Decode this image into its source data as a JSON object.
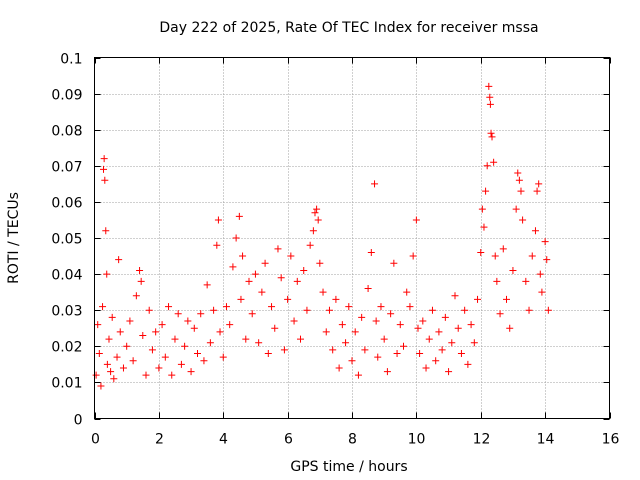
{
  "chart_data": {
    "type": "scatter",
    "title": "Day 222 of 2025, Rate Of TEC Index for receiver mssa",
    "xlabel": "GPS time / hours",
    "ylabel": "ROTI / TECUs",
    "xlim": [
      0,
      16
    ],
    "ylim": [
      0,
      0.1
    ],
    "xticks": [
      0,
      2,
      4,
      6,
      8,
      10,
      12,
      14,
      16
    ],
    "yticks": [
      0,
      0.01,
      0.02,
      0.03,
      0.04,
      0.05,
      0.06,
      0.07,
      0.08,
      0.09,
      0.1
    ],
    "xtick_labels": [
      "0",
      "2",
      "4",
      "6",
      "8",
      "10",
      "12",
      "14",
      "16"
    ],
    "ytick_labels": [
      "0",
      "0.01",
      "0.02",
      "0.03",
      "0.04",
      "0.05",
      "0.06",
      "0.07",
      "0.08",
      "0.09",
      "0.1"
    ],
    "grid": true,
    "marker": "+",
    "color": "#ff0000",
    "series": [
      {
        "name": "ROTI",
        "points": [
          [
            0.05,
            0.012
          ],
          [
            0.1,
            0.026
          ],
          [
            0.15,
            0.018
          ],
          [
            0.2,
            0.009
          ],
          [
            0.25,
            0.031
          ],
          [
            0.28,
            0.069
          ],
          [
            0.3,
            0.072
          ],
          [
            0.32,
            0.066
          ],
          [
            0.35,
            0.052
          ],
          [
            0.38,
            0.04
          ],
          [
            0.4,
            0.015
          ],
          [
            0.45,
            0.022
          ],
          [
            0.5,
            0.013
          ],
          [
            0.55,
            0.028
          ],
          [
            0.6,
            0.011
          ],
          [
            0.7,
            0.017
          ],
          [
            0.75,
            0.044
          ],
          [
            0.8,
            0.024
          ],
          [
            0.9,
            0.014
          ],
          [
            1.0,
            0.02
          ],
          [
            1.1,
            0.027
          ],
          [
            1.2,
            0.016
          ],
          [
            1.3,
            0.034
          ],
          [
            1.4,
            0.041
          ],
          [
            1.45,
            0.038
          ],
          [
            1.5,
            0.023
          ],
          [
            1.6,
            0.012
          ],
          [
            1.7,
            0.03
          ],
          [
            1.8,
            0.019
          ],
          [
            1.9,
            0.024
          ],
          [
            2.0,
            0.014
          ],
          [
            2.1,
            0.026
          ],
          [
            2.2,
            0.017
          ],
          [
            2.3,
            0.031
          ],
          [
            2.4,
            0.012
          ],
          [
            2.5,
            0.022
          ],
          [
            2.6,
            0.029
          ],
          [
            2.7,
            0.015
          ],
          [
            2.8,
            0.02
          ],
          [
            2.9,
            0.027
          ],
          [
            3.0,
            0.013
          ],
          [
            3.1,
            0.025
          ],
          [
            3.2,
            0.018
          ],
          [
            3.3,
            0.029
          ],
          [
            3.4,
            0.016
          ],
          [
            3.5,
            0.037
          ],
          [
            3.6,
            0.021
          ],
          [
            3.7,
            0.03
          ],
          [
            3.8,
            0.048
          ],
          [
            3.85,
            0.055
          ],
          [
            3.9,
            0.024
          ],
          [
            4.0,
            0.017
          ],
          [
            4.1,
            0.031
          ],
          [
            4.2,
            0.026
          ],
          [
            4.3,
            0.042
          ],
          [
            4.4,
            0.05
          ],
          [
            4.5,
            0.056
          ],
          [
            4.55,
            0.033
          ],
          [
            4.6,
            0.045
          ],
          [
            4.7,
            0.022
          ],
          [
            4.8,
            0.038
          ],
          [
            4.9,
            0.029
          ],
          [
            5.0,
            0.04
          ],
          [
            5.1,
            0.021
          ],
          [
            5.2,
            0.035
          ],
          [
            5.3,
            0.043
          ],
          [
            5.4,
            0.018
          ],
          [
            5.5,
            0.031
          ],
          [
            5.6,
            0.025
          ],
          [
            5.7,
            0.047
          ],
          [
            5.8,
            0.039
          ],
          [
            5.9,
            0.019
          ],
          [
            6.0,
            0.033
          ],
          [
            6.1,
            0.045
          ],
          [
            6.2,
            0.027
          ],
          [
            6.3,
            0.038
          ],
          [
            6.4,
            0.022
          ],
          [
            6.5,
            0.041
          ],
          [
            6.6,
            0.03
          ],
          [
            6.7,
            0.048
          ],
          [
            6.8,
            0.052
          ],
          [
            6.85,
            0.057
          ],
          [
            6.9,
            0.058
          ],
          [
            6.95,
            0.055
          ],
          [
            7.0,
            0.043
          ],
          [
            7.1,
            0.035
          ],
          [
            7.2,
            0.024
          ],
          [
            7.3,
            0.03
          ],
          [
            7.4,
            0.019
          ],
          [
            7.5,
            0.033
          ],
          [
            7.6,
            0.014
          ],
          [
            7.7,
            0.026
          ],
          [
            7.8,
            0.021
          ],
          [
            7.9,
            0.031
          ],
          [
            8.0,
            0.016
          ],
          [
            8.1,
            0.024
          ],
          [
            8.2,
            0.012
          ],
          [
            8.3,
            0.028
          ],
          [
            8.4,
            0.019
          ],
          [
            8.5,
            0.036
          ],
          [
            8.6,
            0.046
          ],
          [
            8.7,
            0.065
          ],
          [
            8.75,
            0.027
          ],
          [
            8.8,
            0.017
          ],
          [
            8.9,
            0.031
          ],
          [
            9.0,
            0.022
          ],
          [
            9.1,
            0.013
          ],
          [
            9.2,
            0.029
          ],
          [
            9.3,
            0.043
          ],
          [
            9.4,
            0.018
          ],
          [
            9.5,
            0.026
          ],
          [
            9.6,
            0.02
          ],
          [
            9.7,
            0.035
          ],
          [
            9.8,
            0.031
          ],
          [
            9.9,
            0.045
          ],
          [
            10.0,
            0.055
          ],
          [
            10.05,
            0.025
          ],
          [
            10.1,
            0.018
          ],
          [
            10.2,
            0.027
          ],
          [
            10.3,
            0.014
          ],
          [
            10.4,
            0.022
          ],
          [
            10.5,
            0.03
          ],
          [
            10.6,
            0.016
          ],
          [
            10.7,
            0.024
          ],
          [
            10.8,
            0.019
          ],
          [
            10.9,
            0.028
          ],
          [
            11.0,
            0.013
          ],
          [
            11.1,
            0.021
          ],
          [
            11.2,
            0.034
          ],
          [
            11.3,
            0.025
          ],
          [
            11.4,
            0.018
          ],
          [
            11.5,
            0.03
          ],
          [
            11.6,
            0.015
          ],
          [
            11.7,
            0.026
          ],
          [
            11.8,
            0.021
          ],
          [
            11.9,
            0.033
          ],
          [
            12.0,
            0.046
          ],
          [
            12.05,
            0.058
          ],
          [
            12.1,
            0.053
          ],
          [
            12.15,
            0.063
          ],
          [
            12.2,
            0.07
          ],
          [
            12.25,
            0.092
          ],
          [
            12.28,
            0.089
          ],
          [
            12.3,
            0.087
          ],
          [
            12.32,
            0.079
          ],
          [
            12.35,
            0.078
          ],
          [
            12.4,
            0.071
          ],
          [
            12.45,
            0.045
          ],
          [
            12.5,
            0.038
          ],
          [
            12.6,
            0.029
          ],
          [
            12.7,
            0.047
          ],
          [
            12.8,
            0.033
          ],
          [
            12.9,
            0.025
          ],
          [
            13.0,
            0.041
          ],
          [
            13.1,
            0.058
          ],
          [
            13.15,
            0.068
          ],
          [
            13.2,
            0.066
          ],
          [
            13.25,
            0.063
          ],
          [
            13.3,
            0.055
          ],
          [
            13.4,
            0.038
          ],
          [
            13.5,
            0.03
          ],
          [
            13.6,
            0.045
          ],
          [
            13.7,
            0.052
          ],
          [
            13.75,
            0.063
          ],
          [
            13.8,
            0.065
          ],
          [
            13.85,
            0.04
          ],
          [
            13.9,
            0.035
          ],
          [
            14.0,
            0.049
          ],
          [
            14.05,
            0.044
          ],
          [
            14.1,
            0.03
          ]
        ]
      }
    ]
  }
}
